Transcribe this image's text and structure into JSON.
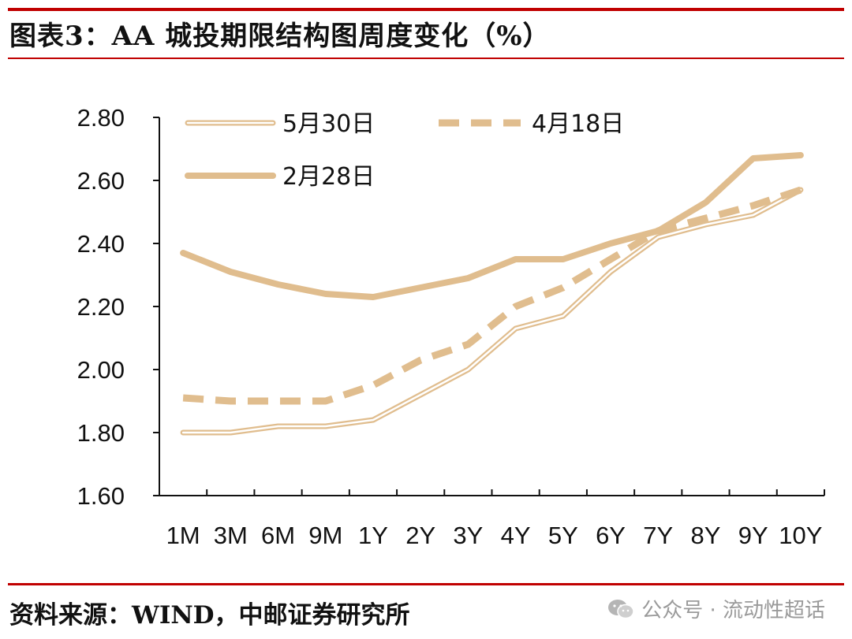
{
  "header": {
    "title": "图表3：AA 城投期限结构图周度变化（%）"
  },
  "footer": {
    "source": "资料来源：WIND，中邮证券研究所",
    "watermark": "公众号 · 流动性超话",
    "watermark_icon": "wechat-icon"
  },
  "colors": {
    "accent_red": "#c00000",
    "series": "#e0bd8e",
    "axis": "#111111"
  },
  "chart_data": {
    "type": "line",
    "title": "AA 城投期限结构图周度变化（%）",
    "xlabel": "",
    "ylabel": "",
    "categories": [
      "1M",
      "3M",
      "6M",
      "9M",
      "1Y",
      "2Y",
      "3Y",
      "4Y",
      "5Y",
      "6Y",
      "7Y",
      "8Y",
      "9Y",
      "10Y"
    ],
    "ylim": [
      1.6,
      2.8
    ],
    "yticks": [
      "1.60",
      "1.80",
      "2.00",
      "2.20",
      "2.40",
      "2.60",
      "2.80"
    ],
    "legend_position": "top-left",
    "series": [
      {
        "name": "5月30日",
        "style": "double",
        "values": [
          1.8,
          1.8,
          1.82,
          1.82,
          1.84,
          1.92,
          2.0,
          2.13,
          2.17,
          2.31,
          2.42,
          2.46,
          2.49,
          2.57
        ]
      },
      {
        "name": "4月18日",
        "style": "dashed",
        "values": [
          1.91,
          1.9,
          1.9,
          1.9,
          1.95,
          2.03,
          2.08,
          2.2,
          2.26,
          2.35,
          2.44,
          2.48,
          2.52,
          2.57
        ]
      },
      {
        "name": "2月28日",
        "style": "solid",
        "values": [
          2.37,
          2.31,
          2.27,
          2.24,
          2.23,
          2.26,
          2.29,
          2.35,
          2.35,
          2.4,
          2.44,
          2.53,
          2.67,
          2.68
        ]
      }
    ]
  }
}
